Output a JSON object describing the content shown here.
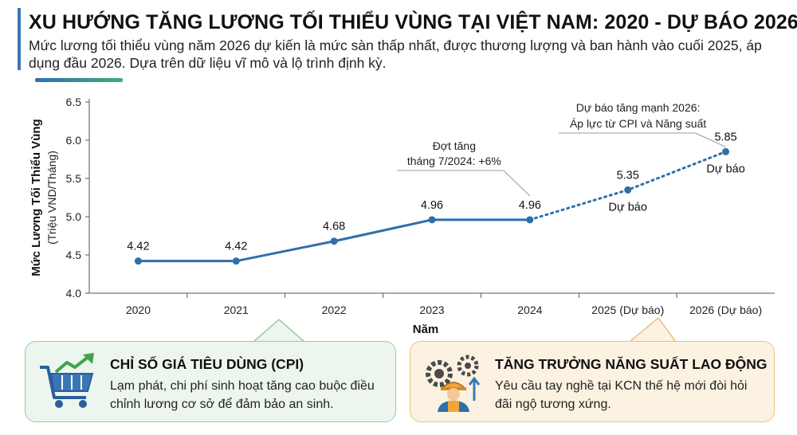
{
  "header": {
    "title": "XU HƯỚNG TĂNG LƯƠNG TỐI THIỂU VÙNG TẠI VIỆT NAM: 2020 - DỰ BÁO 2026",
    "subtitle": "Mức lương tối thiểu vùng năm 2026 dự kiến là mức sàn thấp nhất, được thương lượng và ban hành vào cuối 2025, áp dụng đầu 2026. Dựa trên dữ liệu vĩ mô và lộ trình định kỳ."
  },
  "colors": {
    "line": "#2f6fa9",
    "accent": "#3a78b5",
    "green_bg": "#edf6ee",
    "orange_bg": "#fcf2e1"
  },
  "chart_data": {
    "type": "line",
    "categories": [
      "2020",
      "2021",
      "2022",
      "2023",
      "2024",
      "2025 (Dự báo)",
      "2026 (Dự báo)"
    ],
    "values": [
      4.42,
      4.42,
      4.68,
      4.96,
      4.96,
      5.35,
      5.85
    ],
    "value_labels": [
      "4.42",
      "4.42",
      "4.68",
      "4.96",
      "4.96",
      "5.35",
      "5.85"
    ],
    "forecast_from_index": 4,
    "forecast_tags": [
      "",
      "",
      "",
      "",
      "",
      "Dự báo",
      "Dự báo"
    ],
    "xlabel": "Năm",
    "ylabel": "Mức Lương Tối Thiểu Vùng",
    "ylabel_unit": "(Triệu VND/Tháng)",
    "ylim": [
      4.0,
      6.5
    ],
    "yticks": [
      "4.0",
      "4.5",
      "5.0",
      "5.5",
      "6.0",
      "6.5"
    ],
    "annotations": [
      {
        "lines": [
          "Đợt tăng",
          "tháng 7/2024: +6%"
        ],
        "target_index": 4
      },
      {
        "lines": [
          "Dự báo tăng mạnh 2026:",
          "Áp lực từ CPI và Năng suất"
        ],
        "target_index": 6
      }
    ]
  },
  "cards": {
    "cpi": {
      "icon": "cart-trend-up-icon",
      "title": "CHỈ SỐ GIÁ TIÊU DÙNG (CPI)",
      "body": "Lạm phát, chi phí sinh hoạt tăng cao buộc điều chỉnh lương cơ sở để đảm bảo an sinh."
    },
    "productivity": {
      "icon": "worker-gears-icon",
      "title": "TĂNG TRƯỞNG NĂNG SUẤT LAO ĐỘNG",
      "body": "Yêu cầu tay nghề tại KCN thế hệ mới đòi hỏi đãi ngộ tương xứng."
    }
  }
}
